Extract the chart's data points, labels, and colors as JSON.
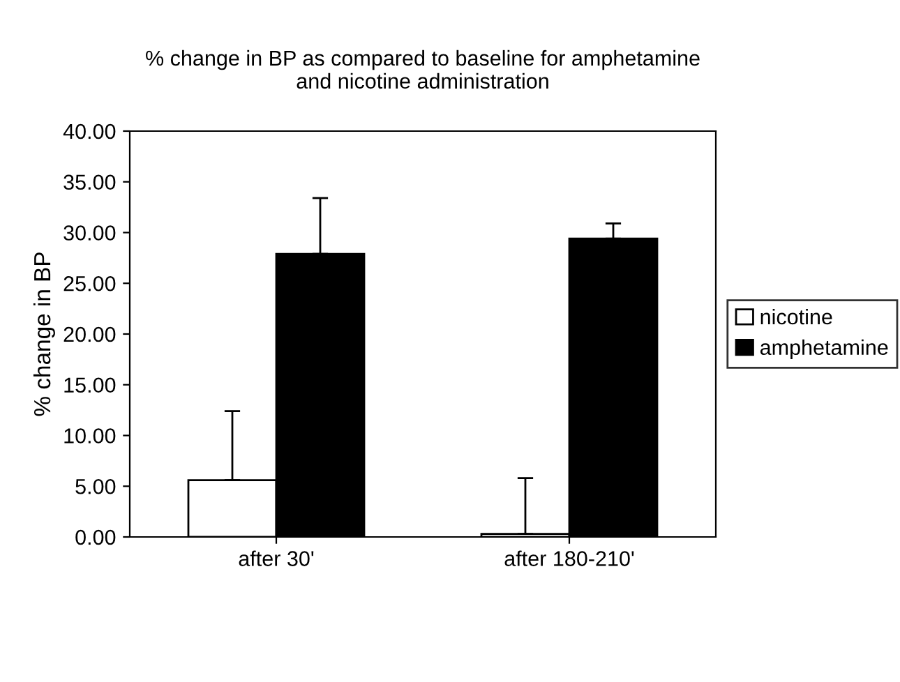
{
  "chart_data": {
    "type": "bar",
    "title": "% change in BP as compared to baseline for amphetamine\nand nicotine administration",
    "ylabel": "% change in BP",
    "categories": [
      "after 30'",
      "after 180-210'"
    ],
    "series": [
      {
        "name": "nicotine",
        "color": "#ffffff",
        "values": [
          5.6,
          0.3
        ],
        "errors": [
          [
            5.6,
            12.4
          ],
          [
            0.3,
            5.8
          ]
        ]
      },
      {
        "name": "amphetamine",
        "color": "#000000",
        "values": [
          27.9,
          29.4
        ],
        "errors": [
          [
            27.9,
            33.4
          ],
          [
            29.4,
            30.9
          ]
        ]
      }
    ],
    "ylim": [
      0,
      40
    ],
    "yticks": [
      {
        "value": 0,
        "label": "0.00"
      },
      {
        "value": 5,
        "label": "5.00"
      },
      {
        "value": 10,
        "label": "10.00"
      },
      {
        "value": 15,
        "label": "15.00"
      },
      {
        "value": 20,
        "label": "20.00"
      },
      {
        "value": 25,
        "label": "25.00"
      },
      {
        "value": 30,
        "label": "30.00"
      },
      {
        "value": 35,
        "label": "35.00"
      },
      {
        "value": 40,
        "label": "40.00"
      }
    ],
    "grid": false,
    "legend": "right"
  }
}
